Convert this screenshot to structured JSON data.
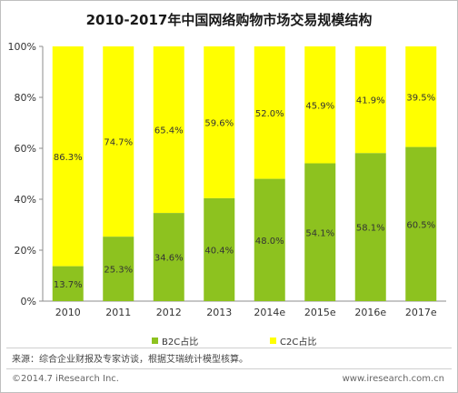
{
  "title": "2010-2017年中国网络购物市场交易规模结构",
  "source": "来源：综合企业财报及专家访谈，根据艾瑞统计模型核算。",
  "copyright": "©2014.7 iResearch Inc.",
  "website": "www.iresearch.com.cn",
  "colors": {
    "b2c": "#8dc21f",
    "c2c": "#ffff00",
    "bar_text": "#333333"
  },
  "chart_data": {
    "type": "bar",
    "stacked": true,
    "categories": [
      "2010",
      "2011",
      "2012",
      "2013",
      "2014e",
      "2015e",
      "2016e",
      "2017e"
    ],
    "series": [
      {
        "name": "B2C占比",
        "values": [
          13.7,
          25.3,
          34.6,
          40.4,
          48.0,
          54.1,
          58.1,
          60.5
        ]
      },
      {
        "name": "C2C占比",
        "values": [
          86.3,
          74.7,
          65.4,
          59.6,
          52.0,
          45.9,
          41.9,
          39.5
        ]
      }
    ],
    "value_labels": {
      "B2C占比": [
        "13.7%",
        "25.3%",
        "34.6%",
        "40.4%",
        "48.0%",
        "54.1%",
        "58.1%",
        "60.5%"
      ],
      "C2C占比": [
        "86.3%",
        "74.7%",
        "65.4%",
        "59.6%",
        "52.0%",
        "45.9%",
        "41.9%",
        "39.5%"
      ]
    },
    "y_ticks": [
      "0%",
      "20%",
      "40%",
      "60%",
      "80%",
      "100%"
    ],
    "ylim": [
      0,
      100
    ],
    "grid": false,
    "legend_position": "bottom"
  }
}
